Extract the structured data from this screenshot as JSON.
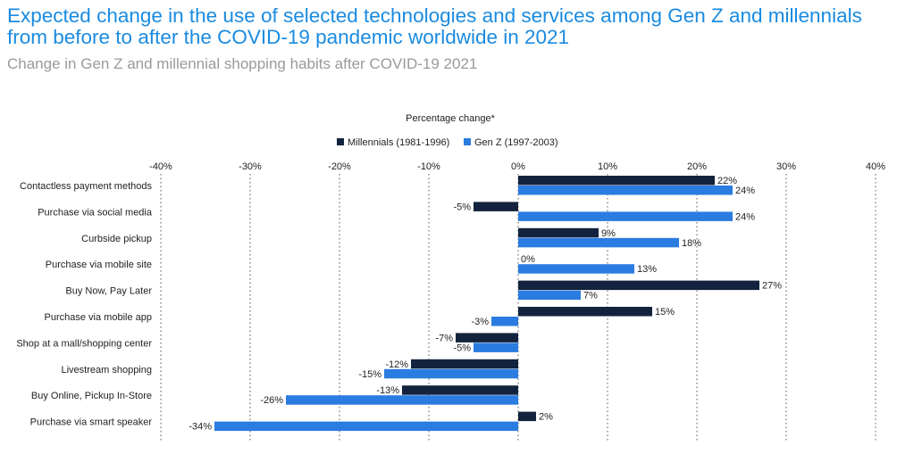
{
  "header": {
    "title": "Expected change in the use of selected technologies and services among Gen Z and millennials from before to after the COVID-19 pandemic worldwide in 2021",
    "subtitle": "Change in Gen Z and millennial shopping habits after COVID-19 2021"
  },
  "colors": {
    "millennials": "#13233d",
    "genz": "#2b7ce0",
    "gridline": "#555555"
  },
  "chart_data": {
    "type": "bar",
    "orientation": "horizontal",
    "axis_title": "Percentage change*",
    "xlim": [
      -40,
      40
    ],
    "x_ticks": [
      "-40%",
      "-30%",
      "-20%",
      "-10%",
      "0%",
      "10%",
      "20%",
      "30%",
      "40%"
    ],
    "grid": true,
    "legend_position": "top-center",
    "categories": [
      "Contactless payment methods",
      "Purchase via social media",
      "Curbside pickup",
      "Purchase via mobile site",
      "Buy Now, Pay Later",
      "Purchase via mobile app",
      "Shop at a mall/shopping center",
      "Livestream shopping",
      "Buy Online, Pickup In-Store",
      "Purchase via smart speaker"
    ],
    "series": [
      {
        "name": "Millennials (1981-1996)",
        "values": [
          22,
          -5,
          9,
          0,
          27,
          15,
          -7,
          -12,
          -13,
          2
        ]
      },
      {
        "name": "Gen Z (1997-2003)",
        "values": [
          24,
          24,
          18,
          13,
          7,
          -3,
          -5,
          -15,
          -26,
          -34
        ]
      }
    ]
  }
}
